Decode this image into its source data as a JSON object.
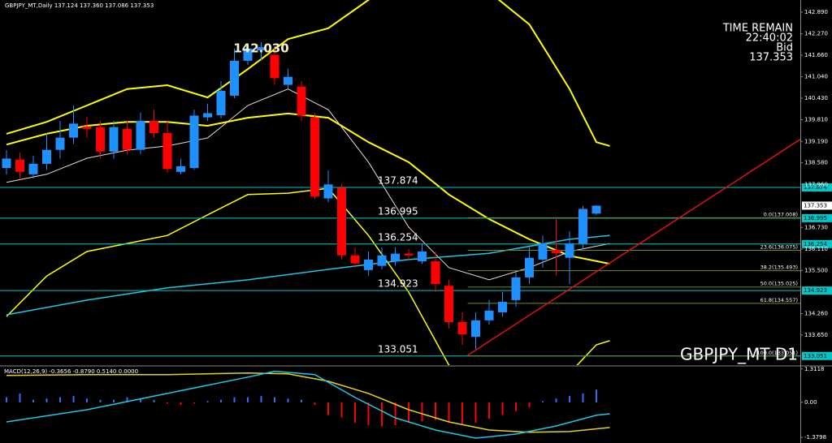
{
  "chart_data": [
    {
      "type": "candlestick",
      "title": "GBPJPY_MT,Daily  137.124 137.360 137.086 137.353",
      "symbol_label": "GBPJPY_MT D1",
      "info": [
        "TIME REMAIN",
        "22:40:02",
        "Bid"
      ],
      "current_price": {
        "value": 137.353,
        "label": "137.353"
      },
      "peak": {
        "text": "142.030",
        "x": 19,
        "value": 142.03
      },
      "up_color": "#1e90ff",
      "down_color": "#ff0000",
      "open": [
        138.43,
        138.67,
        138.25,
        138.55,
        138.95,
        139.3,
        139.62,
        139.6,
        138.9,
        139.55,
        138.95,
        139.78,
        139.43,
        138.32,
        138.43,
        139.88,
        139.94,
        140.5,
        141.5,
        141.8,
        141.67,
        140.81,
        140.76,
        139.88,
        137.56,
        137.87,
        135.93,
        135.51,
        135.63,
        135.76,
        135.98,
        135.76,
        135.76,
        135.06,
        134.02,
        133.6,
        134.07,
        134.3,
        134.65,
        135.3,
        135.81,
        136.09,
        135.86,
        136.27,
        137.124
      ],
      "high": [
        138.94,
        138.87,
        138.78,
        139.42,
        139.78,
        140.22,
        139.9,
        139.78,
        139.78,
        139.78,
        140.02,
        140.1,
        139.78,
        138.7,
        140.1,
        140.27,
        140.92,
        141.85,
        141.95,
        142.03,
        141.85,
        141.27,
        140.92,
        140.0,
        138.36,
        137.96,
        136.16,
        136.04,
        136.16,
        136.16,
        136.11,
        136.27,
        136.04,
        135.23,
        134.3,
        134.3,
        134.65,
        134.88,
        135.46,
        136.16,
        136.5,
        136.97,
        136.62,
        137.35,
        137.36
      ],
      "low": [
        138.25,
        138.13,
        138.13,
        138.38,
        138.7,
        139.12,
        139.3,
        138.7,
        138.7,
        138.83,
        138.83,
        139.3,
        138.3,
        138.25,
        138.38,
        139.78,
        139.85,
        140.43,
        141.38,
        141.5,
        140.81,
        140.69,
        139.78,
        137.56,
        137.45,
        135.82,
        135.58,
        135.35,
        135.53,
        135.63,
        135.81,
        135.69,
        134.87,
        133.84,
        133.37,
        133.25,
        133.95,
        134.18,
        134.46,
        135.11,
        135.58,
        135.35,
        135.11,
        136.11,
        137.086
      ],
      "close": [
        138.7,
        138.32,
        138.55,
        138.95,
        139.3,
        139.7,
        139.55,
        138.9,
        139.6,
        138.95,
        139.78,
        139.43,
        138.4,
        138.48,
        139.93,
        140.0,
        140.64,
        141.5,
        141.85,
        141.89,
        141.0,
        141.04,
        139.93,
        137.61,
        137.96,
        135.93,
        135.7,
        135.81,
        135.93,
        135.98,
        135.93,
        136.04,
        135.11,
        134.02,
        133.67,
        134.07,
        134.35,
        134.6,
        135.3,
        135.86,
        136.27,
        135.99,
        136.27,
        137.26,
        137.353
      ],
      "indicators": [
        {
          "color": "#ffff00",
          "width": 2,
          "x": [
            0,
            3,
            6,
            9,
            12,
            15,
            18,
            21,
            24,
            27,
            30,
            33,
            36,
            39,
            42,
            44,
            45
          ],
          "values": [
            139.41,
            139.75,
            140.22,
            140.69,
            140.8,
            140.45,
            141.26,
            142.12,
            142.43,
            143.24,
            144.17,
            144.17,
            143.47,
            142.54,
            140.69,
            139.17,
            139.06
          ]
        },
        {
          "color": "#ffff00",
          "width": 2,
          "x": [
            0,
            3,
            6,
            9,
            12,
            15,
            18,
            21,
            24,
            27,
            30,
            33,
            36,
            39,
            42,
            45
          ],
          "values": [
            139.1,
            139.41,
            139.64,
            139.75,
            139.75,
            139.64,
            139.87,
            139.99,
            139.87,
            139.17,
            138.6,
            137.67,
            136.97,
            136.39,
            135.92,
            135.69
          ]
        },
        {
          "color": "#ffff00",
          "width": 1.5,
          "x": [
            0,
            3,
            6,
            9,
            12,
            15,
            18,
            21,
            24,
            27,
            30,
            33,
            36,
            39,
            42,
            44,
            45
          ],
          "values": [
            134.18,
            135.34,
            136.04,
            136.27,
            136.5,
            137.09,
            137.67,
            137.71,
            137.85,
            136.5,
            134.88,
            132.79,
            132.09,
            131.86,
            132.56,
            133.37,
            133.49
          ]
        },
        {
          "color": "#f0d8d8",
          "width": 1,
          "x": [
            0,
            3,
            6,
            9,
            12,
            15,
            18,
            21,
            24,
            27,
            30,
            33,
            36,
            39,
            42,
            45
          ],
          "values": [
            138.02,
            138.25,
            138.71,
            138.94,
            139.06,
            139.29,
            140.22,
            140.69,
            140.1,
            138.6,
            136.74,
            135.58,
            135.23,
            135.58,
            136.04,
            136.27
          ]
        },
        {
          "color": "#1ec8e6",
          "width": 1.5,
          "x": [
            0,
            6,
            12,
            18,
            24,
            30,
            36,
            42,
            45
          ],
          "values": [
            134.23,
            134.65,
            135.0,
            135.23,
            135.53,
            135.81,
            135.99,
            136.39,
            136.5
          ]
        }
      ],
      "levels_color": "#00c8c8",
      "levels": [
        {
          "value": 137.874,
          "label": "137.874"
        },
        {
          "value": 136.995,
          "label": "136.995"
        },
        {
          "value": 136.254,
          "label": "136.254"
        },
        {
          "value": 134.923,
          "label": "134.923"
        },
        {
          "value": 133.051,
          "label": "133.051"
        }
      ],
      "fib_color": "#6b8e23",
      "fib_levels": [
        {
          "value": 137.008,
          "label": "0.0(137.008)"
        },
        {
          "value": 136.075,
          "label": "23.6(136.075)"
        },
        {
          "value": 135.493,
          "label": "38.2(135.493)"
        },
        {
          "value": 135.025,
          "label": "50.0(135.025)"
        },
        {
          "value": 134.557,
          "label": "61.8(134.557)"
        },
        {
          "value": 133.051,
          "label": "100.0(133.051)"
        }
      ],
      "trendline": {
        "color": "#e01010",
        "x": [
          34.4,
          59.2
        ],
        "values": [
          133.07,
          139.25
        ]
      },
      "ylim": [
        132.79,
        143.238
      ],
      "yticks": [
        {
          "value": 142.89,
          "label": "142.890"
        },
        {
          "value": 142.27,
          "label": "142.270"
        },
        {
          "value": 141.66,
          "label": "141.660"
        },
        {
          "value": 141.04,
          "label": "141.040"
        },
        {
          "value": 140.43,
          "label": "140.430"
        },
        {
          "value": 139.81,
          "label": "139.810"
        },
        {
          "value": 139.19,
          "label": "139.190"
        },
        {
          "value": 138.58,
          "label": "138.580"
        },
        {
          "value": 137.96,
          "label": "137.960"
        },
        {
          "value": 136.73,
          "label": "136.730"
        },
        {
          "value": 136.11,
          "label": "136.110"
        },
        {
          "value": 135.5,
          "label": "135.500"
        },
        {
          "value": 134.26,
          "label": "134.260"
        },
        {
          "value": 133.65,
          "label": "133.650"
        }
      ]
    },
    {
      "type": "macd",
      "title": "MACD(12,26,9) -0.3656 -0.8790 0.5140 0.0000",
      "up_color": "#3070ff",
      "down_color": "#ff0000",
      "histogram": [
        0.2,
        0.35,
        0.1,
        0.15,
        0.2,
        0.25,
        0.15,
        0.1,
        0.1,
        0.2,
        0.15,
        0.1,
        -0.05,
        -0.1,
        -0.05,
        0.05,
        0.1,
        0.2,
        0.2,
        0.25,
        0.2,
        0.15,
        0.1,
        -0.1,
        -0.5,
        -0.6,
        -0.8,
        -0.9,
        -0.95,
        -0.9,
        -0.8,
        -0.75,
        -0.7,
        -0.75,
        -0.85,
        -0.8,
        -0.65,
        -0.5,
        -0.35,
        -0.2,
        0.05,
        0.15,
        0.25,
        0.35,
        0.5
      ],
      "lines": [
        {
          "color": "#e6d21e",
          "x": [
            0,
            6,
            12,
            18,
            21,
            24,
            27,
            30,
            33,
            36,
            39,
            42,
            45
          ],
          "values": [
            1.06,
            1.09,
            1.09,
            1.15,
            1.12,
            0.83,
            0.35,
            -0.29,
            -0.77,
            -1.09,
            -1.18,
            -1.15,
            -0.99
          ]
        },
        {
          "color": "#1ec8e6",
          "x": [
            0,
            6,
            12,
            18,
            20,
            23,
            26,
            29,
            32,
            35,
            38,
            41,
            44,
            45
          ],
          "values": [
            -0.77,
            -0.29,
            0.35,
            0.99,
            1.22,
            1.09,
            0.19,
            -0.61,
            -1.09,
            -1.41,
            -1.25,
            -0.93,
            -0.51,
            -0.45
          ]
        }
      ],
      "ylim": [
        -1.6,
        1.4
      ],
      "yticks": [
        {
          "value": 1.3118,
          "label": "1.3118"
        },
        {
          "value": 0,
          "label": "0.00"
        },
        {
          "value": -1.3798,
          "label": "-1.3798"
        }
      ]
    }
  ]
}
